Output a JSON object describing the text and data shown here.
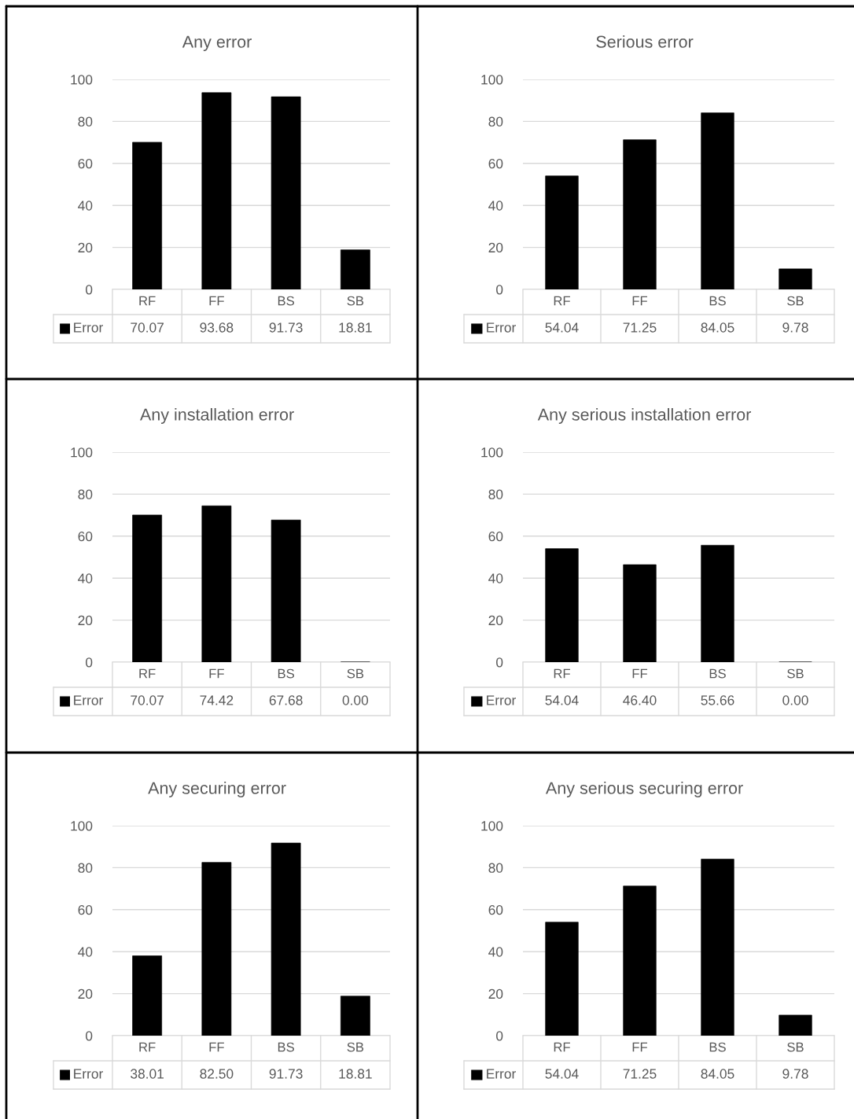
{
  "chart_data": [
    {
      "type": "bar",
      "title": "Any error",
      "categories": [
        "RF",
        "FF",
        "BS",
        "SB"
      ],
      "series": [
        {
          "name": "Error",
          "color": "#000000",
          "values": [
            70.07,
            93.68,
            91.73,
            18.81
          ],
          "value_labels": [
            "70.07",
            "93.68",
            "91.73",
            "18.81"
          ]
        }
      ],
      "ylim": [
        0,
        100
      ],
      "yticks": [
        0,
        20,
        40,
        60,
        80,
        100
      ],
      "grid": "y",
      "legend": "bottom"
    },
    {
      "type": "bar",
      "title": "Serious error",
      "categories": [
        "RF",
        "FF",
        "BS",
        "SB"
      ],
      "series": [
        {
          "name": "Error",
          "color": "#000000",
          "values": [
            54.04,
            71.25,
            84.05,
            9.78
          ],
          "value_labels": [
            "54.04",
            "71.25",
            "84.05",
            "9.78"
          ]
        }
      ],
      "ylim": [
        0,
        100
      ],
      "yticks": [
        0,
        20,
        40,
        60,
        80,
        100
      ],
      "grid": "y",
      "legend": "bottom"
    },
    {
      "type": "bar",
      "title": "Any installation error",
      "categories": [
        "RF",
        "FF",
        "BS",
        "SB"
      ],
      "series": [
        {
          "name": "Error",
          "color": "#000000",
          "values": [
            70.07,
            74.42,
            67.68,
            0.0
          ],
          "value_labels": [
            "70.07",
            "74.42",
            "67.68",
            "0.00"
          ]
        }
      ],
      "ylim": [
        0,
        100
      ],
      "yticks": [
        0,
        20,
        40,
        60,
        80,
        100
      ],
      "grid": "y",
      "legend": "bottom"
    },
    {
      "type": "bar",
      "title": "Any serious installation error",
      "categories": [
        "RF",
        "FF",
        "BS",
        "SB"
      ],
      "series": [
        {
          "name": "Error",
          "color": "#000000",
          "values": [
            54.04,
            46.4,
            55.66,
            0.0
          ],
          "value_labels": [
            "54.04",
            "46.40",
            "55.66",
            "0.00"
          ]
        }
      ],
      "ylim": [
        0,
        100
      ],
      "yticks": [
        0,
        20,
        40,
        60,
        80,
        100
      ],
      "grid": "y",
      "legend": "bottom"
    },
    {
      "type": "bar",
      "title": "Any securing error",
      "categories": [
        "RF",
        "FF",
        "BS",
        "SB"
      ],
      "series": [
        {
          "name": "Error",
          "color": "#000000",
          "values": [
            38.01,
            82.5,
            91.73,
            18.81
          ],
          "value_labels": [
            "38.01",
            "82.50",
            "91.73",
            "18.81"
          ]
        }
      ],
      "ylim": [
        0,
        100
      ],
      "yticks": [
        0,
        20,
        40,
        60,
        80,
        100
      ],
      "grid": "y",
      "legend": "bottom"
    },
    {
      "type": "bar",
      "title": "Any serious securing error",
      "categories": [
        "RF",
        "FF",
        "BS",
        "SB"
      ],
      "series": [
        {
          "name": "Error",
          "color": "#000000",
          "values": [
            54.04,
            71.25,
            84.05,
            9.78
          ],
          "value_labels": [
            "54.04",
            "71.25",
            "84.05",
            "9.78"
          ]
        }
      ],
      "ylim": [
        0,
        100
      ],
      "yticks": [
        0,
        20,
        40,
        60,
        80,
        100
      ],
      "grid": "y",
      "legend": "bottom"
    }
  ]
}
